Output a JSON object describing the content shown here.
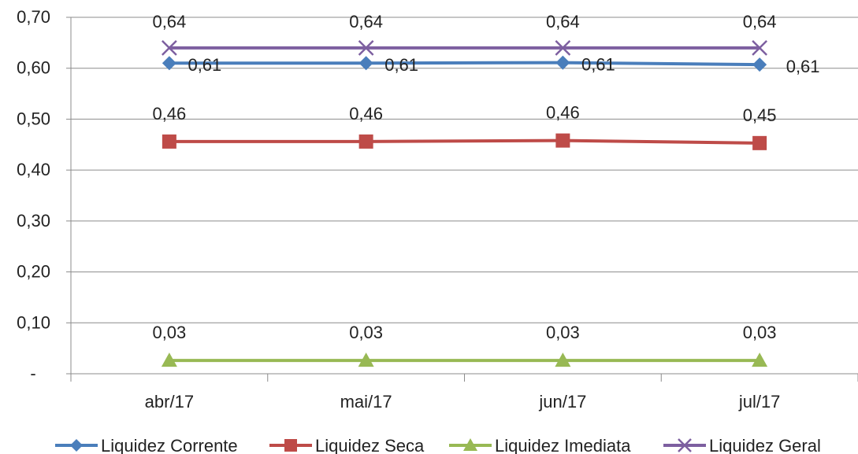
{
  "chart_data": {
    "type": "line",
    "title": "",
    "xlabel": "",
    "ylabel": "",
    "categories": [
      "abr/17",
      "mai/17",
      "jun/17",
      "jul/17"
    ],
    "ylim": [
      0,
      0.7
    ],
    "yticks": [
      0,
      0.1,
      0.2,
      0.3,
      0.4,
      0.5,
      0.6,
      0.7
    ],
    "ytick_labels": [
      "-",
      "0,10",
      "0,20",
      "0,30",
      "0,40",
      "0,50",
      "0,60",
      "0,70"
    ],
    "grid": "horizontal",
    "legend_position": "bottom",
    "series": [
      {
        "name": "Liquidez Corrente",
        "values": [
          0.61,
          0.61,
          0.611,
          0.607
        ],
        "labels": [
          "0,61",
          "0,61",
          "0,61",
          "0,61"
        ],
        "color": "#4a7ebb",
        "marker": "diamond"
      },
      {
        "name": "Liquidez Seca",
        "values": [
          0.456,
          0.456,
          0.458,
          0.453
        ],
        "labels": [
          "0,46",
          "0,46",
          "0,46",
          "0,45"
        ],
        "color": "#be4b48",
        "marker": "square"
      },
      {
        "name": "Liquidez Imediata",
        "values": [
          0.026,
          0.026,
          0.026,
          0.026
        ],
        "labels": [
          "0,03",
          "0,03",
          "0,03",
          "0,03"
        ],
        "color": "#98b954",
        "marker": "triangle"
      },
      {
        "name": "Liquidez Geral",
        "values": [
          0.64,
          0.64,
          0.64,
          0.64
        ],
        "labels": [
          "0,64",
          "0,64",
          "0,64",
          "0,64"
        ],
        "color": "#7d5fa0",
        "marker": "x"
      }
    ]
  }
}
